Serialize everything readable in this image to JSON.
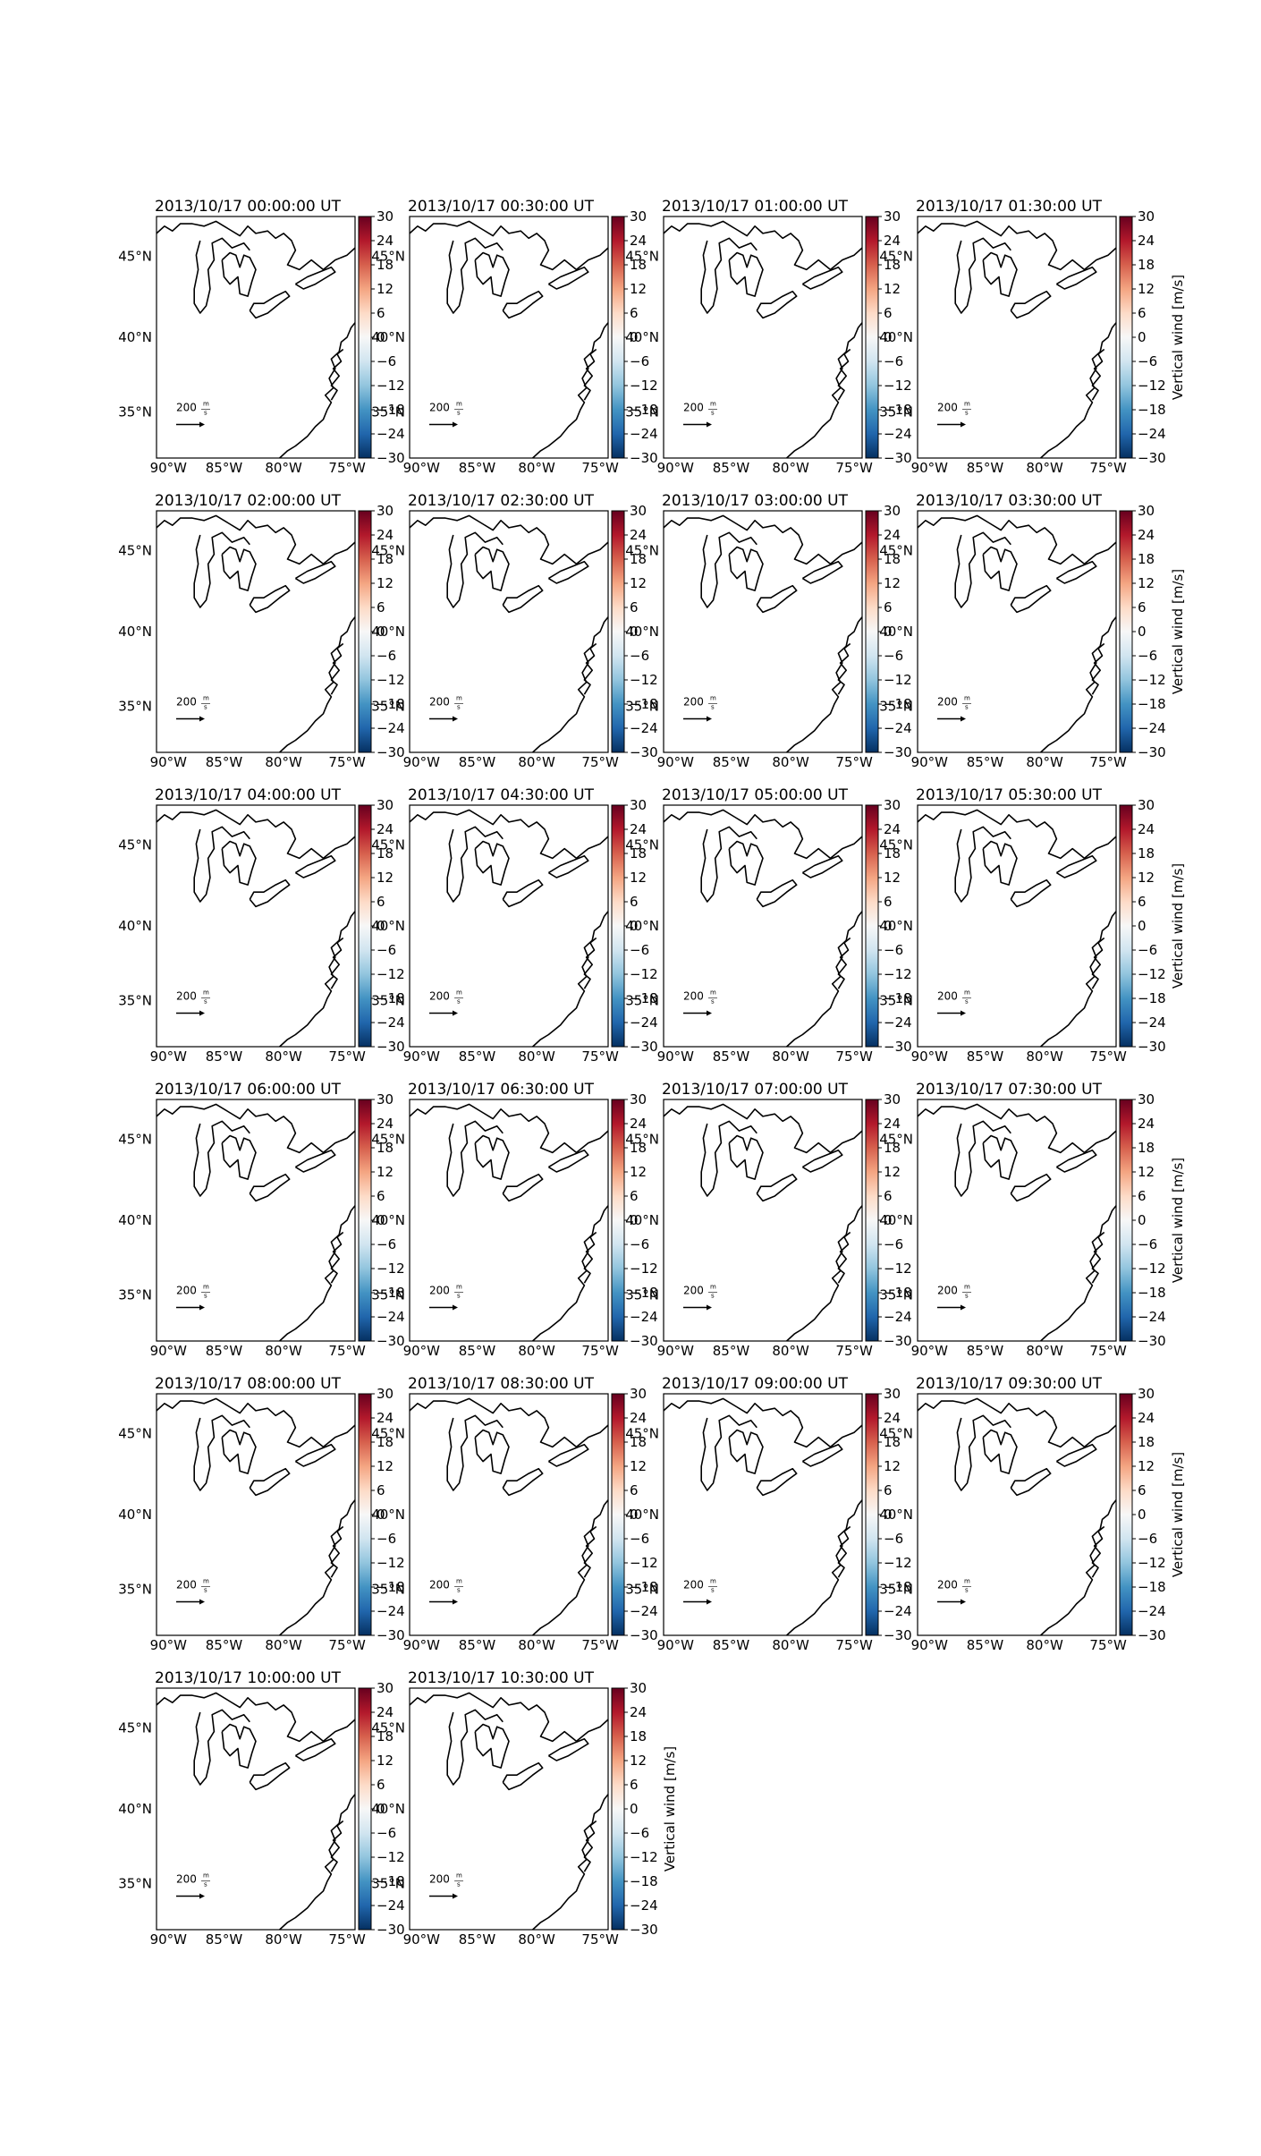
{
  "figure": {
    "panels": [
      {
        "title": "2013/10/17 00:00:00 UT",
        "cbar_label": ""
      },
      {
        "title": "2013/10/17 00:30:00 UT",
        "cbar_label": ""
      },
      {
        "title": "2013/10/17 01:00:00 UT",
        "cbar_label": ""
      },
      {
        "title": "2013/10/17 01:30:00 UT",
        "cbar_label": "Vertical wind [m/s]"
      },
      {
        "title": "2013/10/17 02:00:00 UT",
        "cbar_label": ""
      },
      {
        "title": "2013/10/17 02:30:00 UT",
        "cbar_label": ""
      },
      {
        "title": "2013/10/17 03:00:00 UT",
        "cbar_label": ""
      },
      {
        "title": "2013/10/17 03:30:00 UT",
        "cbar_label": "Vertical wind [m/s]"
      },
      {
        "title": "2013/10/17 04:00:00 UT",
        "cbar_label": ""
      },
      {
        "title": "2013/10/17 04:30:00 UT",
        "cbar_label": ""
      },
      {
        "title": "2013/10/17 05:00:00 UT",
        "cbar_label": ""
      },
      {
        "title": "2013/10/17 05:30:00 UT",
        "cbar_label": "Vertical wind [m/s]"
      },
      {
        "title": "2013/10/17 06:00:00 UT",
        "cbar_label": ""
      },
      {
        "title": "2013/10/17 06:30:00 UT",
        "cbar_label": ""
      },
      {
        "title": "2013/10/17 07:00:00 UT",
        "cbar_label": ""
      },
      {
        "title": "2013/10/17 07:30:00 UT",
        "cbar_label": "Vertical wind [m/s]"
      },
      {
        "title": "2013/10/17 08:00:00 UT",
        "cbar_label": ""
      },
      {
        "title": "2013/10/17 08:30:00 UT",
        "cbar_label": ""
      },
      {
        "title": "2013/10/17 09:00:00 UT",
        "cbar_label": ""
      },
      {
        "title": "2013/10/17 09:30:00 UT",
        "cbar_label": "Vertical wind [m/s]"
      },
      {
        "title": "2013/10/17 10:00:00 UT",
        "cbar_label": ""
      },
      {
        "title": "2013/10/17 10:30:00 UT",
        "cbar_label": "Vertical wind [m/s]"
      }
    ],
    "lat_ticks": [
      "45°N",
      "40°N",
      "35°N"
    ],
    "lon_ticks": [
      "90°W",
      "85°W",
      "80°W",
      "75°W"
    ],
    "colorbar": {
      "ticks": [
        "30",
        "24",
        "18",
        "12",
        "6",
        "0",
        "−6",
        "−12",
        "−18",
        "−24",
        "−30"
      ],
      "colors": [
        "#67001f",
        "#b2182b",
        "#d6604d",
        "#f4a582",
        "#fddbc7",
        "#f7f7f7",
        "#d1e5f0",
        "#92c5de",
        "#4393c3",
        "#2166ac",
        "#053061"
      ]
    },
    "quiver_key": {
      "value": "200",
      "unit_num": "m",
      "unit_den": "s"
    }
  }
}
